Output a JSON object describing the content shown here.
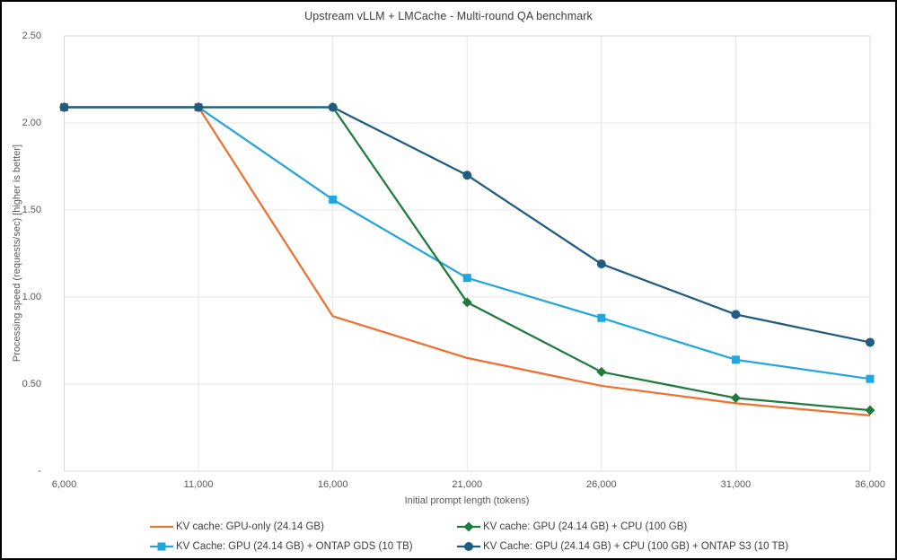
{
  "chart_data": {
    "type": "line",
    "title": "Upstream vLLM + LMCache - Multi-round QA benchmark",
    "xlabel": "Initial prompt length (tokens)",
    "ylabel": "Processing speed (requests/sec) [higher is better]",
    "x": [
      6000,
      11000,
      16000,
      21000,
      26000,
      31000,
      36000
    ],
    "x_tick_labels": [
      "6,000",
      "11,000",
      "16,000",
      "21,000",
      "26,000",
      "31,000",
      "36,000"
    ],
    "y_ticks": [
      0,
      0.5,
      1.0,
      1.5,
      2.0,
      2.5
    ],
    "y_tick_labels": [
      "-",
      "0.50",
      "1.00",
      "1.50",
      "2.00",
      "2.50"
    ],
    "ylim": [
      0,
      2.5
    ],
    "grid": true,
    "legend_position": "bottom",
    "series": [
      {
        "name": "KV cache: GPU-only (24.14 GB)",
        "color": "#ED7130",
        "marker": "none",
        "values": [
          2.09,
          2.09,
          0.89,
          0.65,
          0.49,
          0.39,
          0.32
        ]
      },
      {
        "name": "KV Cache: GPU (24.14 GB) + ONTAP GDS (10 TB)",
        "color": "#23A5DE",
        "marker": "square",
        "values": [
          2.09,
          2.09,
          1.56,
          1.11,
          0.88,
          0.64,
          0.53
        ]
      },
      {
        "name": "KV cache: GPU (24.14 GB) + CPU (100 GB)",
        "color": "#1E7B3C",
        "marker": "diamond",
        "values": [
          2.09,
          2.09,
          2.09,
          0.97,
          0.57,
          0.42,
          0.35
        ]
      },
      {
        "name": "KV Cache: GPU (24.14 GB) + CPU (100 GB) + ONTAP S3 (10 TB)",
        "color": "#1F5C7F",
        "marker": "circle",
        "values": [
          2.09,
          2.09,
          2.09,
          1.7,
          1.19,
          0.9,
          0.74
        ]
      }
    ],
    "colors": {
      "gridline": "#E5E5E5",
      "plot_border": "#D9D9D9",
      "axis_text": "#595959",
      "title_text": "#3D3D3D"
    }
  }
}
